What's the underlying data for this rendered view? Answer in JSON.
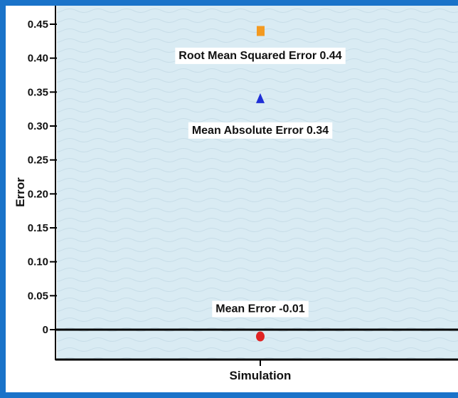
{
  "chart_data": {
    "type": "scatter",
    "ylabel": "Error",
    "xlabel": "",
    "ylim": [
      -0.045,
      0.46
    ],
    "y_ticks": [
      {
        "value": 0.45,
        "label": "0.45"
      },
      {
        "value": 0.4,
        "label": "0.40"
      },
      {
        "value": 0.35,
        "label": "0.35"
      },
      {
        "value": 0.3,
        "label": "0.30"
      },
      {
        "value": 0.25,
        "label": "0.25"
      },
      {
        "value": 0.2,
        "label": "0.20"
      },
      {
        "value": 0.15,
        "label": "0.15"
      },
      {
        "value": 0.1,
        "label": "0.10"
      },
      {
        "value": 0.05,
        "label": "0.05"
      },
      {
        "value": 0,
        "label": "0"
      }
    ],
    "categories": [
      "Simulation"
    ],
    "grid": false,
    "background_color": "#d9ebf3",
    "points": [
      {
        "metric": "Root Mean Squared Error",
        "value": 0.44,
        "marker": "square",
        "color": "#f39a21"
      },
      {
        "metric": "Mean Absolute Error",
        "value": 0.34,
        "marker": "triangle",
        "color": "#1f2fd6"
      },
      {
        "metric": "Mean Error",
        "value": -0.01,
        "marker": "circle",
        "color": "#e02424"
      }
    ],
    "annotations": [
      {
        "id": "rmse",
        "text": "Root Mean Squared Error  0.44",
        "y": 0.405
      },
      {
        "id": "mae",
        "text": "Mean Absolute Error  0.34",
        "y": 0.295
      },
      {
        "id": "me",
        "text": "Mean  Error  -0.01",
        "y": 0.032
      }
    ]
  }
}
